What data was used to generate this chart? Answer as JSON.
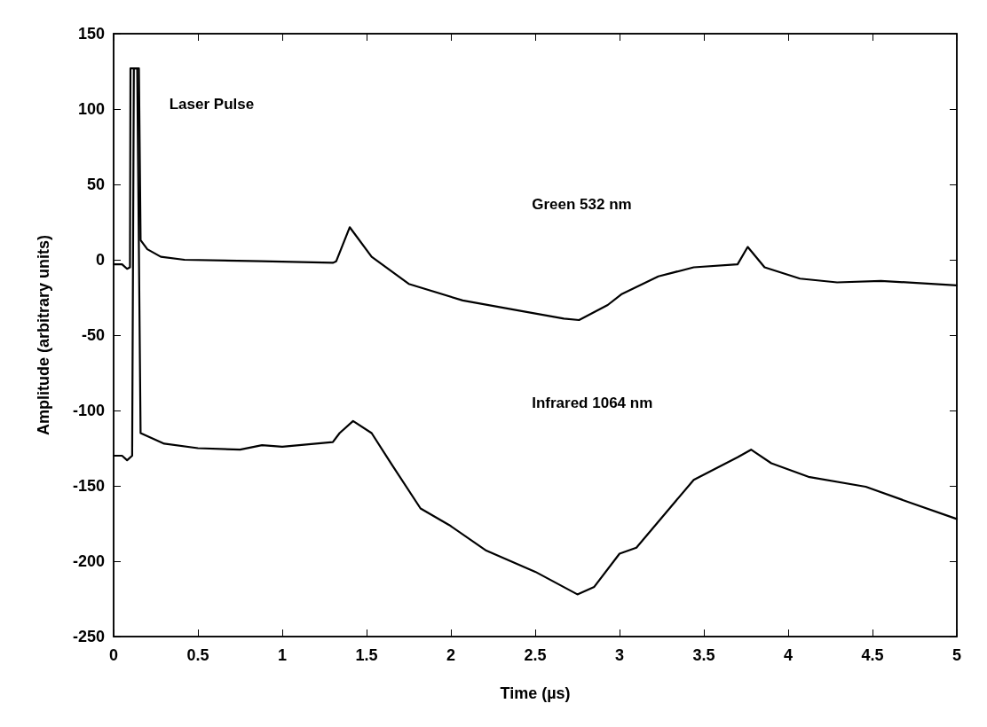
{
  "chart_data": {
    "type": "line",
    "xlabel": "Time (µs)",
    "ylabel": "Amplitude (arbitrary units)",
    "xlim": [
      0,
      5
    ],
    "xticks": [
      0,
      0.5,
      1,
      1.5,
      2,
      2.5,
      3,
      3.5,
      4,
      4.5,
      5
    ],
    "ylim": [
      -250,
      150
    ],
    "yticks": [
      -250,
      -200,
      -150,
      -100,
      -50,
      0,
      50,
      100,
      150
    ],
    "marker": "none",
    "line_style": "solid",
    "series": [
      {
        "color": "#000000",
        "x": [
          0,
          0.05,
          0.08,
          0.097,
          0.1,
          0.15,
          0.16,
          0.2,
          0.28,
          0.42,
          0.88,
          1.3,
          1.32,
          1.4,
          1.53,
          1.75,
          2.07,
          2.42,
          2.67,
          2.76,
          2.93,
          3.01,
          3.23,
          3.44,
          3.7,
          3.76,
          3.86,
          4.07,
          4.29,
          4.55,
          5
        ],
        "values": [
          -3,
          -3,
          -6,
          -5,
          127,
          127,
          13,
          7,
          2,
          0,
          -1,
          -2,
          -1,
          21.6,
          2,
          -16,
          -27,
          -34,
          -39,
          -40,
          -30,
          -23,
          -11,
          -5,
          -3,
          8.5,
          -5,
          -12.5,
          -15,
          -14,
          -17
        ]
      },
      {
        "color": "#000000",
        "x": [
          0,
          0.05,
          0.08,
          0.11,
          0.12,
          0.14,
          0.16,
          0.3,
          0.5,
          0.75,
          0.88,
          1.0,
          1.3,
          1.34,
          1.42,
          1.53,
          1.65,
          1.82,
          1.99,
          2.21,
          2.5,
          2.75,
          2.85,
          3.0,
          3.1,
          3.44,
          3.7,
          3.78,
          3.9,
          4.12,
          4.46,
          4.72,
          5
        ],
        "values": [
          -130,
          -130,
          -133,
          -130,
          127,
          127,
          -115,
          -122,
          -125,
          -126,
          -123,
          -124,
          -121,
          -115,
          -107,
          -115,
          -136,
          -165,
          -176,
          -193,
          -207,
          -222,
          -217,
          -195,
          -191,
          -146,
          -131,
          -126,
          -135,
          -144,
          -150.6,
          -161,
          -172
        ]
      }
    ],
    "annotations": [
      "Laser Pulse",
      "Green 532 nm",
      "Infrared 1064 nm"
    ]
  }
}
